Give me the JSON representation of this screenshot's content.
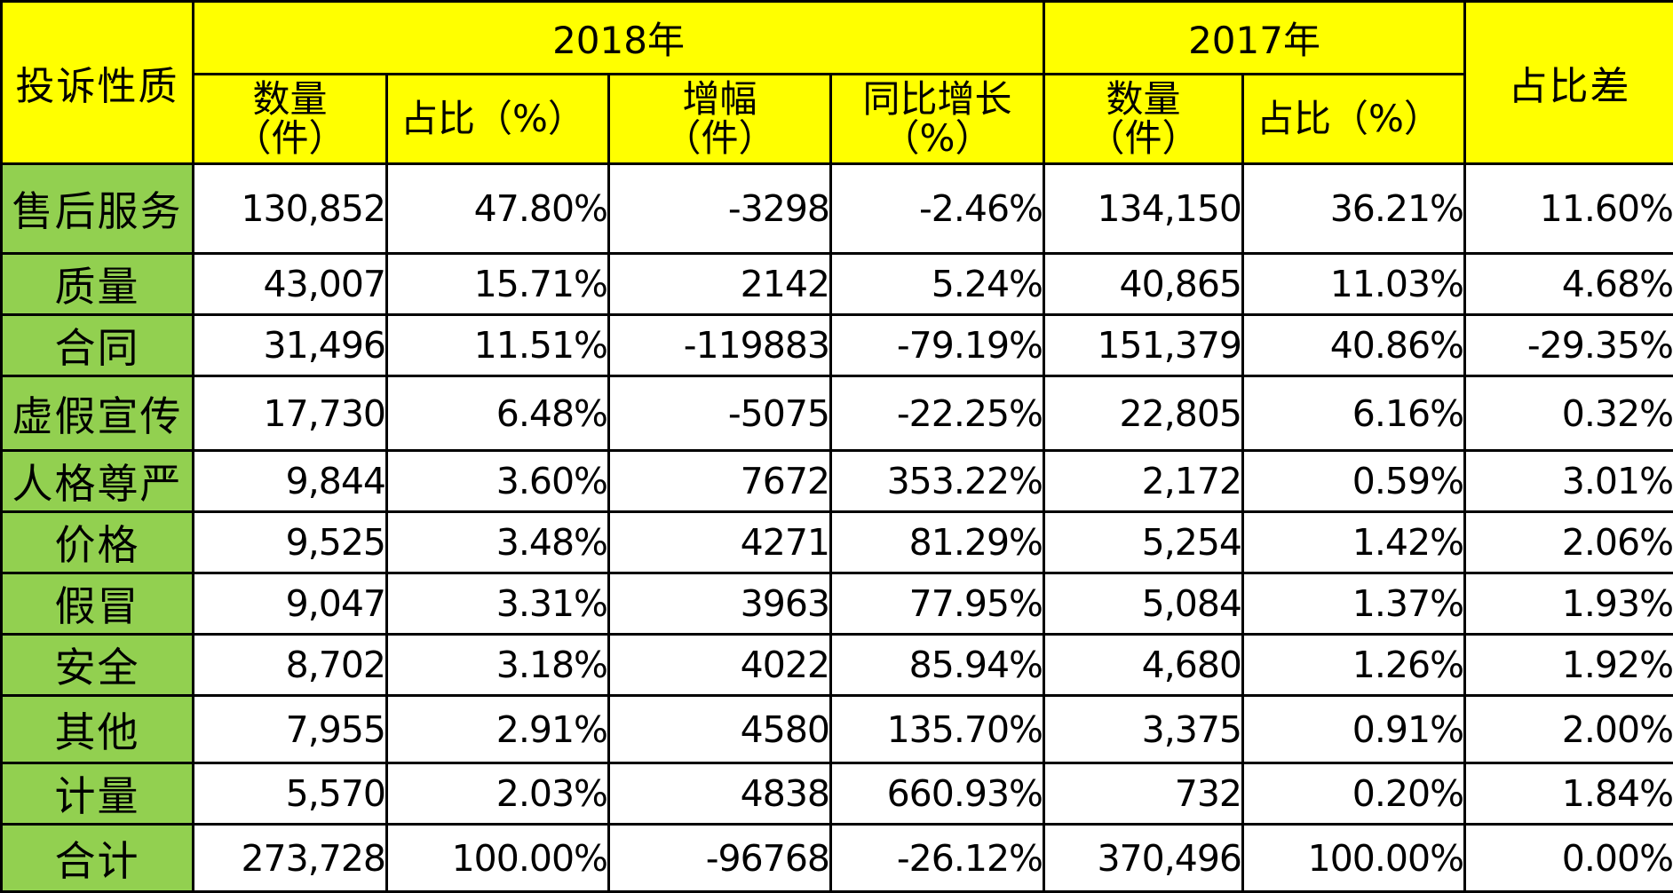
{
  "headers": {
    "corner": "投诉性质",
    "year_2018": "2018年",
    "year_2017": "2017年",
    "diff": "占比差",
    "sub": {
      "count_2018": [
        "数量",
        "（件）"
      ],
      "ratio_2018": "占比（%）",
      "increase": [
        "增幅",
        "（件）"
      ],
      "yoy": [
        "同比增长",
        "（%）"
      ],
      "count_2017": [
        "数量",
        "（件）"
      ],
      "ratio_2017": "占比（%）"
    }
  },
  "rows": [
    {
      "category": "售后服务",
      "count_2018": "130,852",
      "ratio_2018": "47.80%",
      "increase": "-3298",
      "yoy": "-2.46%",
      "count_2017": "134,150",
      "ratio_2017": "36.21%",
      "diff": "11.60%"
    },
    {
      "category": "质量",
      "count_2018": "43,007",
      "ratio_2018": "15.71%",
      "increase": "2142",
      "yoy": "5.24%",
      "count_2017": "40,865",
      "ratio_2017": "11.03%",
      "diff": "4.68%"
    },
    {
      "category": "合同",
      "count_2018": "31,496",
      "ratio_2018": "11.51%",
      "increase": "-119883",
      "yoy": "-79.19%",
      "count_2017": "151,379",
      "ratio_2017": "40.86%",
      "diff": "-29.35%"
    },
    {
      "category": "虚假宣传",
      "count_2018": "17,730",
      "ratio_2018": "6.48%",
      "increase": "-5075",
      "yoy": "-22.25%",
      "count_2017": "22,805",
      "ratio_2017": "6.16%",
      "diff": "0.32%"
    },
    {
      "category": "人格尊严",
      "count_2018": "9,844",
      "ratio_2018": "3.60%",
      "increase": "7672",
      "yoy": "353.22%",
      "count_2017": "2,172",
      "ratio_2017": "0.59%",
      "diff": "3.01%"
    },
    {
      "category": "价格",
      "count_2018": "9,525",
      "ratio_2018": "3.48%",
      "increase": "4271",
      "yoy": "81.29%",
      "count_2017": "5,254",
      "ratio_2017": "1.42%",
      "diff": "2.06%"
    },
    {
      "category": "假冒",
      "count_2018": "9,047",
      "ratio_2018": "3.31%",
      "increase": "3963",
      "yoy": "77.95%",
      "count_2017": "5,084",
      "ratio_2017": "1.37%",
      "diff": "1.93%"
    },
    {
      "category": "安全",
      "count_2018": "8,702",
      "ratio_2018": "3.18%",
      "increase": "4022",
      "yoy": "85.94%",
      "count_2017": "4,680",
      "ratio_2017": "1.26%",
      "diff": "1.92%"
    },
    {
      "category": "其他",
      "count_2018": "7,955",
      "ratio_2018": "2.91%",
      "increase": "4580",
      "yoy": "135.70%",
      "count_2017": "3,375",
      "ratio_2017": "0.91%",
      "diff": "2.00%"
    },
    {
      "category": "计量",
      "count_2018": "5,570",
      "ratio_2018": "2.03%",
      "increase": "4838",
      "yoy": "660.93%",
      "count_2017": "732",
      "ratio_2017": "0.20%",
      "diff": "1.84%"
    },
    {
      "category": "合计",
      "count_2018": "273,728",
      "ratio_2018": "100.00%",
      "increase": "-96768",
      "yoy": "-26.12%",
      "count_2017": "370,496",
      "ratio_2017": "100.00%",
      "diff": "0.00%"
    }
  ],
  "colors": {
    "header_bg": "#ffff00",
    "label_bg": "#92d050",
    "border": "#000000"
  }
}
